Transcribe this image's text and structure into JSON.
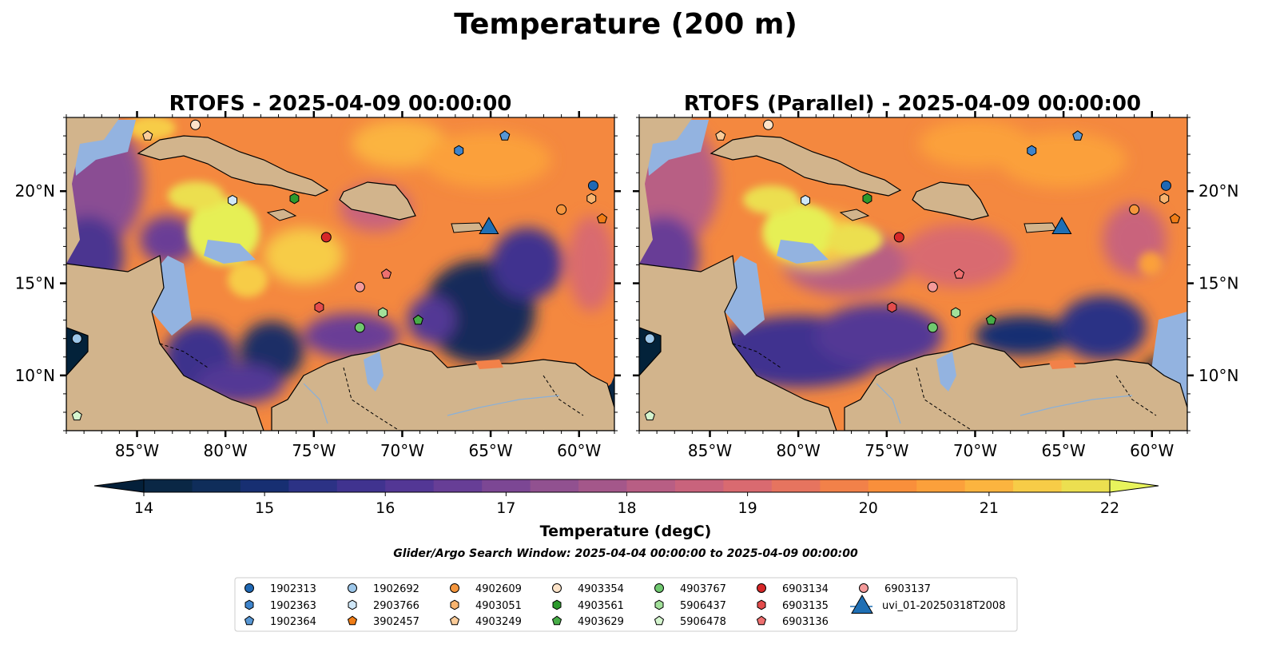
{
  "figure": {
    "suptitle": "Temperature (200 m)",
    "subtitle": "Glider/Argo Search Window: 2025-04-04 00:00:00 to 2025-04-09 00:00:00"
  },
  "panels": [
    {
      "id": "rtofs",
      "title": "RTOFS - 2025-04-09 00:00:00",
      "variant": "operational",
      "show_lat_left": true
    },
    {
      "id": "rtofs-parallel",
      "title": "RTOFS (Parallel) - 2025-04-09 00:00:00",
      "variant": "parallel",
      "show_lat_left": false
    }
  ],
  "map": {
    "lon_range": [
      -89,
      -58
    ],
    "lat_range": [
      7,
      24
    ],
    "lon_ticks": [
      {
        "value": -85,
        "label": "85°W"
      },
      {
        "value": -80,
        "label": "80°W"
      },
      {
        "value": -75,
        "label": "75°W"
      },
      {
        "value": -70,
        "label": "70°W"
      },
      {
        "value": -65,
        "label": "65°W"
      },
      {
        "value": -60,
        "label": "60°W"
      }
    ],
    "lat_ticks": [
      {
        "value": 10,
        "label": "10°N"
      },
      {
        "value": 15,
        "label": "15°N"
      },
      {
        "value": 20,
        "label": "20°N"
      }
    ],
    "colors": {
      "land": "#d2b48c",
      "shelf": "#93b3e0",
      "deep": "#03223a",
      "warm": "#f4883f",
      "hot": "#e6ef55"
    }
  },
  "colorbar": {
    "label": "Temperature (degC)",
    "vmin": 14,
    "vmax": 22,
    "step": 0.5,
    "ticks": [
      "14",
      "15",
      "16",
      "17",
      "18",
      "19",
      "20",
      "21",
      "22"
    ],
    "colors": [
      "#0a2745",
      "#0f2d5a",
      "#172f72",
      "#2c3285",
      "#40338f",
      "#533795",
      "#673e96",
      "#7c4794",
      "#915190",
      "#a4578a",
      "#b85e84",
      "#c9637c",
      "#d96a70",
      "#e6745f",
      "#f28149",
      "#f98f3b",
      "#fba03b",
      "#fbb43f",
      "#f7cc47",
      "#ecdf50"
    ],
    "over_color": "#e8f45c",
    "under_color": "#04203a"
  },
  "platforms": [
    {
      "id": "1902313",
      "label": "1902313",
      "shape": "circle",
      "color": "#1f68b4",
      "lon": -59.2,
      "lat": 20.3
    },
    {
      "id": "1902363",
      "label": "1902363",
      "shape": "hexagon",
      "color": "#3e84cc",
      "lon": -66.8,
      "lat": 22.2
    },
    {
      "id": "1902364",
      "label": "1902364",
      "shape": "pentagon",
      "color": "#5897d4",
      "lon": -64.2,
      "lat": 23.0
    },
    {
      "id": "1902692",
      "label": "1902692",
      "shape": "circle",
      "color": "#9dc7ea",
      "lon": -88.4,
      "lat": 12.0
    },
    {
      "id": "2903766",
      "label": "2903766",
      "shape": "hexagon",
      "color": "#cfe7f8",
      "lon": -79.6,
      "lat": 19.5
    },
    {
      "id": "3902457",
      "label": "3902457",
      "shape": "pentagon",
      "color": "#f07d17",
      "lon": -58.7,
      "lat": 18.5
    },
    {
      "id": "4902609",
      "label": "4902609",
      "shape": "circle",
      "color": "#f5963d",
      "lon": -61.0,
      "lat": 19.0
    },
    {
      "id": "4903051",
      "label": "4903051",
      "shape": "hexagon",
      "color": "#f8b46f",
      "lon": -59.3,
      "lat": 19.6
    },
    {
      "id": "4903249",
      "label": "4903249",
      "shape": "pentagon",
      "color": "#fbcc99",
      "lon": -84.4,
      "lat": 23.0
    },
    {
      "id": "4903354",
      "label": "4903354",
      "shape": "circle",
      "color": "#fde3c8",
      "lon": -81.7,
      "lat": 23.6
    },
    {
      "id": "4903561",
      "label": "4903561",
      "shape": "hexagon",
      "color": "#2d9a2d",
      "lon": -76.1,
      "lat": 19.6
    },
    {
      "id": "4903629",
      "label": "4903629",
      "shape": "pentagon",
      "color": "#47ad47",
      "lon": -69.1,
      "lat": 13.0
    },
    {
      "id": "4903767",
      "label": "4903767",
      "shape": "circle",
      "color": "#6fc86f",
      "lon": -72.4,
      "lat": 12.6
    },
    {
      "id": "5906437",
      "label": "5906437",
      "shape": "hexagon",
      "color": "#a2e09a",
      "lon": -71.1,
      "lat": 13.4
    },
    {
      "id": "5906478",
      "label": "5906478",
      "shape": "pentagon",
      "color": "#d5f5cf",
      "lon": -88.4,
      "lat": 7.8
    },
    {
      "id": "6903134",
      "label": "6903134",
      "shape": "circle",
      "color": "#d62728",
      "lon": -74.3,
      "lat": 17.5
    },
    {
      "id": "6903135",
      "label": "6903135",
      "shape": "hexagon",
      "color": "#e34c4c",
      "lon": -74.7,
      "lat": 13.7
    },
    {
      "id": "6903136",
      "label": "6903136",
      "shape": "pentagon",
      "color": "#ee7070",
      "lon": -70.9,
      "lat": 15.5
    },
    {
      "id": "6903137",
      "label": "6903137",
      "shape": "circle",
      "color": "#f49a9a",
      "lon": -72.4,
      "lat": 14.8
    },
    {
      "id": "uvi_01",
      "label": "uvi_01-20250318T2008",
      "shape": "triangle",
      "color": "#1f6fb4",
      "lon": -65.1,
      "lat": 18.1
    }
  ]
}
